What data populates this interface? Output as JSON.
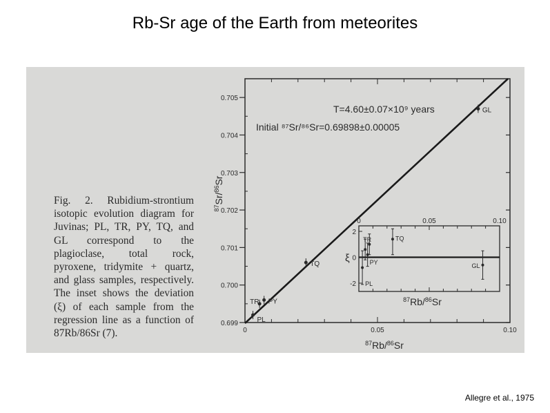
{
  "slide": {
    "title": "Rb-Sr age of the Earth from meteorites",
    "citation": "Allegre et al., 1975"
  },
  "caption": {
    "text": "Fig. 2. Rubidium-strontium isotopic evolution diagram for Juvinas; PL, TR, PY, TQ, and GL correspond to the plagioclase, total rock, pyroxene, tridymite + quartz, and glass samples, respectively. The inset shows the deviation (ξ) of each sample from the regression line as a function of 87Rb/86Sr (7)."
  },
  "colors": {
    "scan_background": "#d9d9d7",
    "ink": "#2a2a2a"
  },
  "chart_data": [
    {
      "type": "scatter",
      "x_label": "87Rb/86Sr",
      "y_label": "87Sr/86Sr",
      "xlim": [
        0,
        0.1
      ],
      "ylim": [
        0.699,
        0.7055
      ],
      "x_ticks": [
        "0",
        "0.05",
        "0.10"
      ],
      "y_ticks": [
        "0.699",
        "0.700",
        "0.701",
        "0.702",
        "0.703",
        "0.704",
        "0.705"
      ],
      "annotations": [
        "T=4.60±0.07×10⁹ years",
        "Initial ⁸⁷Sr/⁸⁶Sr=0.69898±0.00005"
      ],
      "regression_line": {
        "intercept": 0.69898,
        "slope": 0.0657
      },
      "points": [
        {
          "label": "PL",
          "x": 0.003,
          "y": 0.6992
        },
        {
          "label": "TR",
          "x": 0.0055,
          "y": 0.6995
        },
        {
          "label": "PY",
          "x": 0.0072,
          "y": 0.6996
        },
        {
          "label": "TQ",
          "x": 0.023,
          "y": 0.7006
        },
        {
          "label": "GL",
          "x": 0.088,
          "y": 0.7047
        }
      ],
      "grid": false
    },
    {
      "type": "scatter",
      "x_label": "87Rb/86Sr",
      "y_label": "ξ",
      "xlim": [
        0,
        0.1
      ],
      "ylim": [
        -2,
        2
      ],
      "x_ticks": [
        "0",
        "0.05",
        "0.10"
      ],
      "y_ticks": [
        "-2",
        "0",
        "2"
      ],
      "points": [
        {
          "label": "PL",
          "x": 0.0025,
          "y": -0.8,
          "err": 1.3
        },
        {
          "label": "TR",
          "x": 0.0045,
          "y": 0.6,
          "err": 0.8
        },
        {
          "label": "PY",
          "x": 0.0062,
          "y": 0.2,
          "err": 0.9
        },
        {
          "label": "",
          "x": 0.0075,
          "y": 1.0,
          "err": 0.8
        },
        {
          "label": "TQ",
          "x": 0.024,
          "y": 1.4,
          "err": 1.2
        },
        {
          "label": "GL",
          "x": 0.088,
          "y": -0.6,
          "err": 1.1
        }
      ]
    }
  ]
}
